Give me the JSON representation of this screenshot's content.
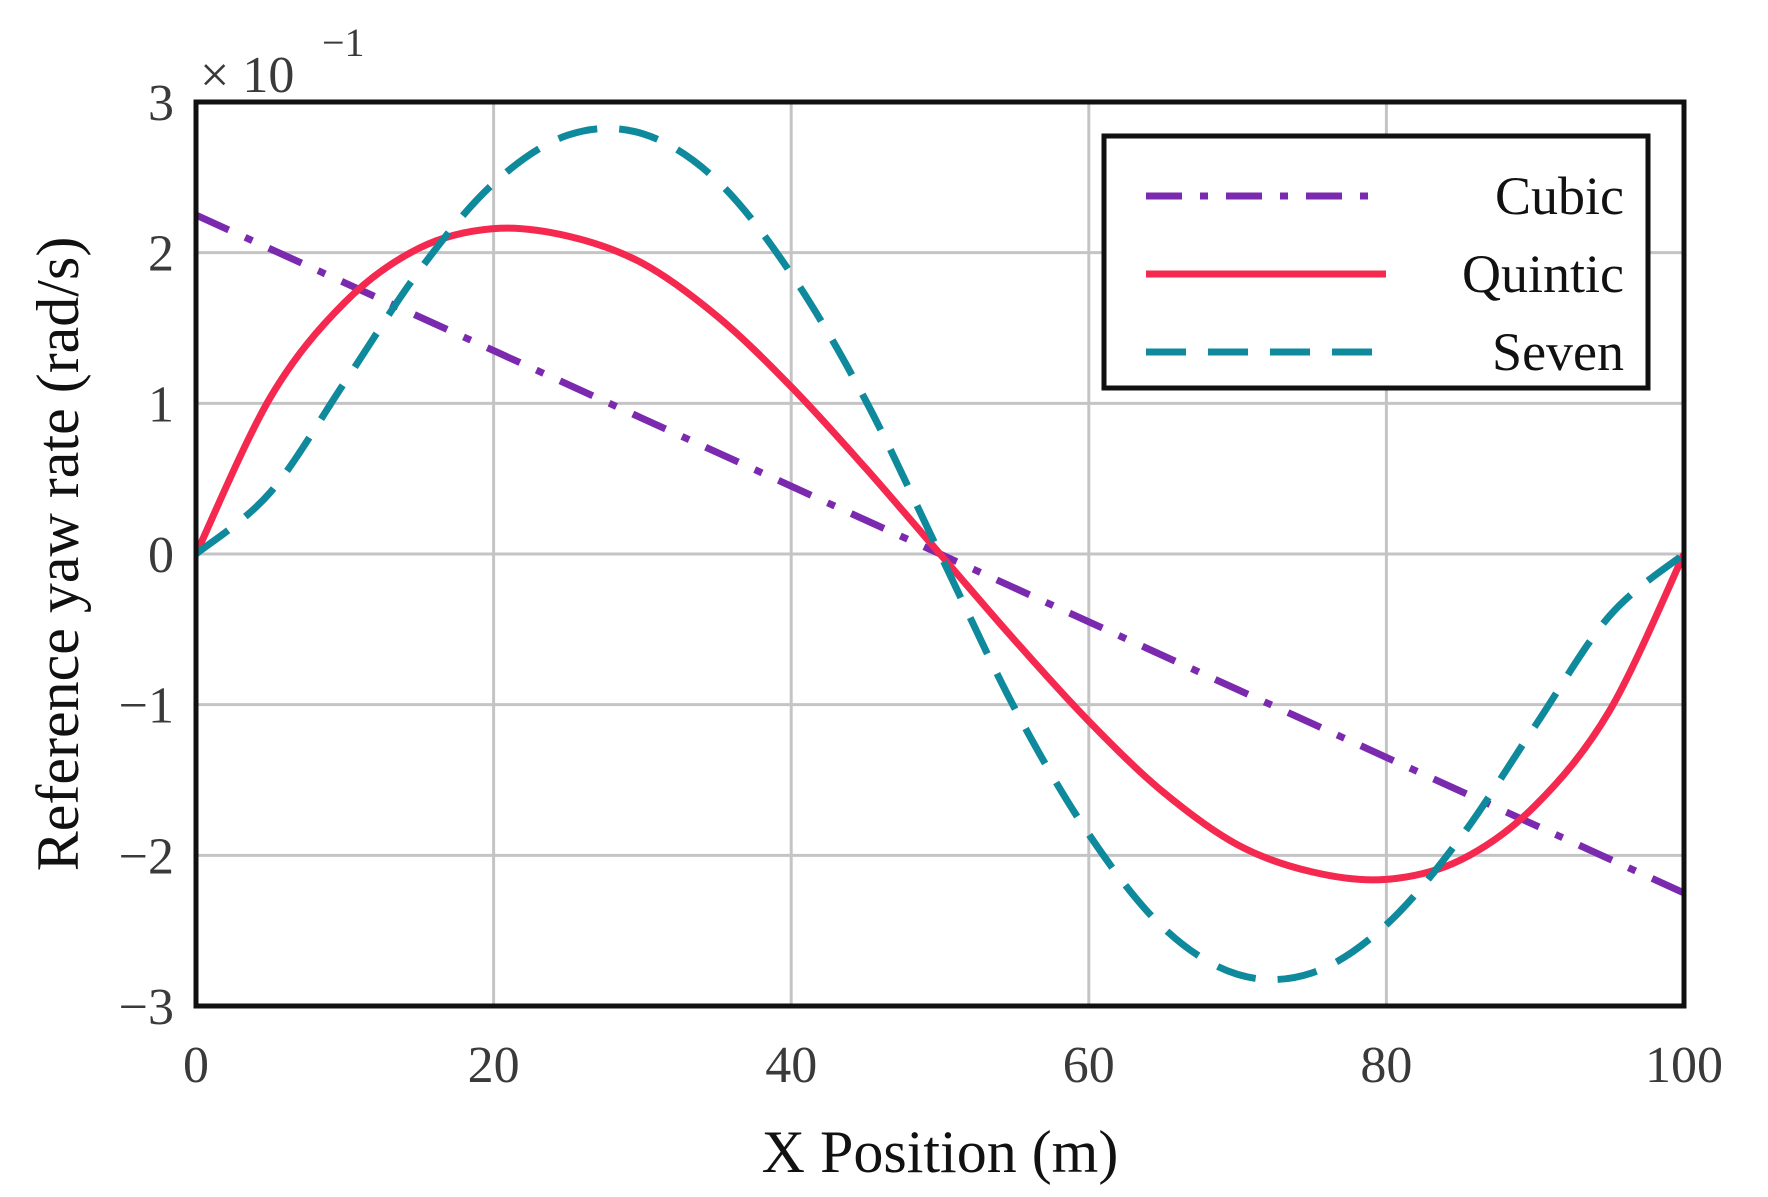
{
  "chart_data": {
    "type": "line",
    "title": "",
    "xlabel": "X Position (m)",
    "ylabel": "Reference yaw rate (rad/s)",
    "xlim": [
      0,
      100
    ],
    "ylim": [
      -3,
      3
    ],
    "y_scale_label": "× 10",
    "y_scale_exponent": "−1",
    "grid": true,
    "legend_position": "top-right",
    "x_ticks": [
      0,
      20,
      40,
      60,
      80,
      100
    ],
    "x_tick_labels": [
      "0",
      "20",
      "40",
      "60",
      "80",
      "100"
    ],
    "y_ticks": [
      3,
      2,
      1,
      0,
      -1,
      -2,
      -3
    ],
    "y_tick_labels": [
      "3",
      "2",
      "1",
      "0",
      "−1",
      "−2",
      "−3"
    ],
    "series": [
      {
        "name": "Cubic",
        "color": "#7B2AAF",
        "style": "dashdot",
        "x": [
          0,
          10,
          20,
          30,
          40,
          50,
          60,
          70,
          80,
          90,
          100
        ],
        "y": [
          2.25,
          1.8,
          1.35,
          0.9,
          0.45,
          0.0,
          -0.45,
          -0.9,
          -1.35,
          -1.8,
          -2.25
        ]
      },
      {
        "name": "Quintic",
        "color": "#F5294F",
        "style": "solid",
        "x": [
          0,
          5,
          10,
          15,
          20,
          25,
          30,
          35,
          40,
          45,
          50,
          55,
          60,
          65,
          70,
          75,
          80,
          85,
          90,
          95,
          100
        ],
        "y": [
          0.0,
          1.04,
          1.67,
          2.03,
          2.16,
          2.11,
          1.93,
          1.58,
          1.11,
          0.57,
          0.0,
          -0.57,
          -1.11,
          -1.58,
          -1.93,
          -2.11,
          -2.16,
          -2.03,
          -1.67,
          -1.04,
          0.0
        ]
      },
      {
        "name": "Seven",
        "color": "#0E8A9C",
        "style": "dashed",
        "x": [
          0,
          5,
          10,
          15,
          20,
          25,
          30,
          35,
          40,
          45,
          50,
          55,
          60,
          65,
          70,
          75,
          80,
          85,
          90,
          95,
          100
        ],
        "y": [
          0.0,
          0.41,
          1.14,
          1.88,
          2.46,
          2.78,
          2.79,
          2.48,
          1.86,
          1.02,
          0.0,
          -1.02,
          -1.86,
          -2.48,
          -2.79,
          -2.78,
          -2.46,
          -1.88,
          -1.14,
          -0.41,
          0.0
        ]
      }
    ]
  }
}
